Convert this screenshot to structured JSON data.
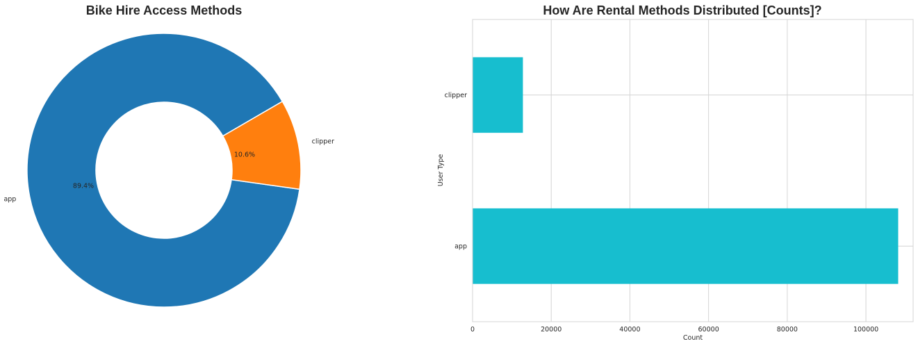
{
  "chart_data": [
    {
      "type": "pie",
      "style": "donut",
      "title": "Bike Hire Access Methods",
      "categories": [
        "app",
        "clipper"
      ],
      "values": [
        89.4,
        10.6
      ],
      "value_labels": [
        "89.4%",
        "10.6%"
      ],
      "colors": [
        "#1f77b4",
        "#ff7f0e"
      ]
    },
    {
      "type": "bar",
      "orientation": "horizontal",
      "title": "How Are Rental Methods Distributed [Counts]?",
      "xlabel": "Count",
      "ylabel": "User Type",
      "categories": [
        "clipper",
        "app"
      ],
      "values": [
        12800,
        108200
      ],
      "xlim": [
        0,
        112000
      ],
      "xticks": [
        0,
        20000,
        40000,
        60000,
        80000,
        100000
      ],
      "xtick_labels": [
        "0",
        "20000",
        "40000",
        "60000",
        "80000",
        "100000"
      ],
      "grid": true,
      "color": "#17becf"
    }
  ]
}
